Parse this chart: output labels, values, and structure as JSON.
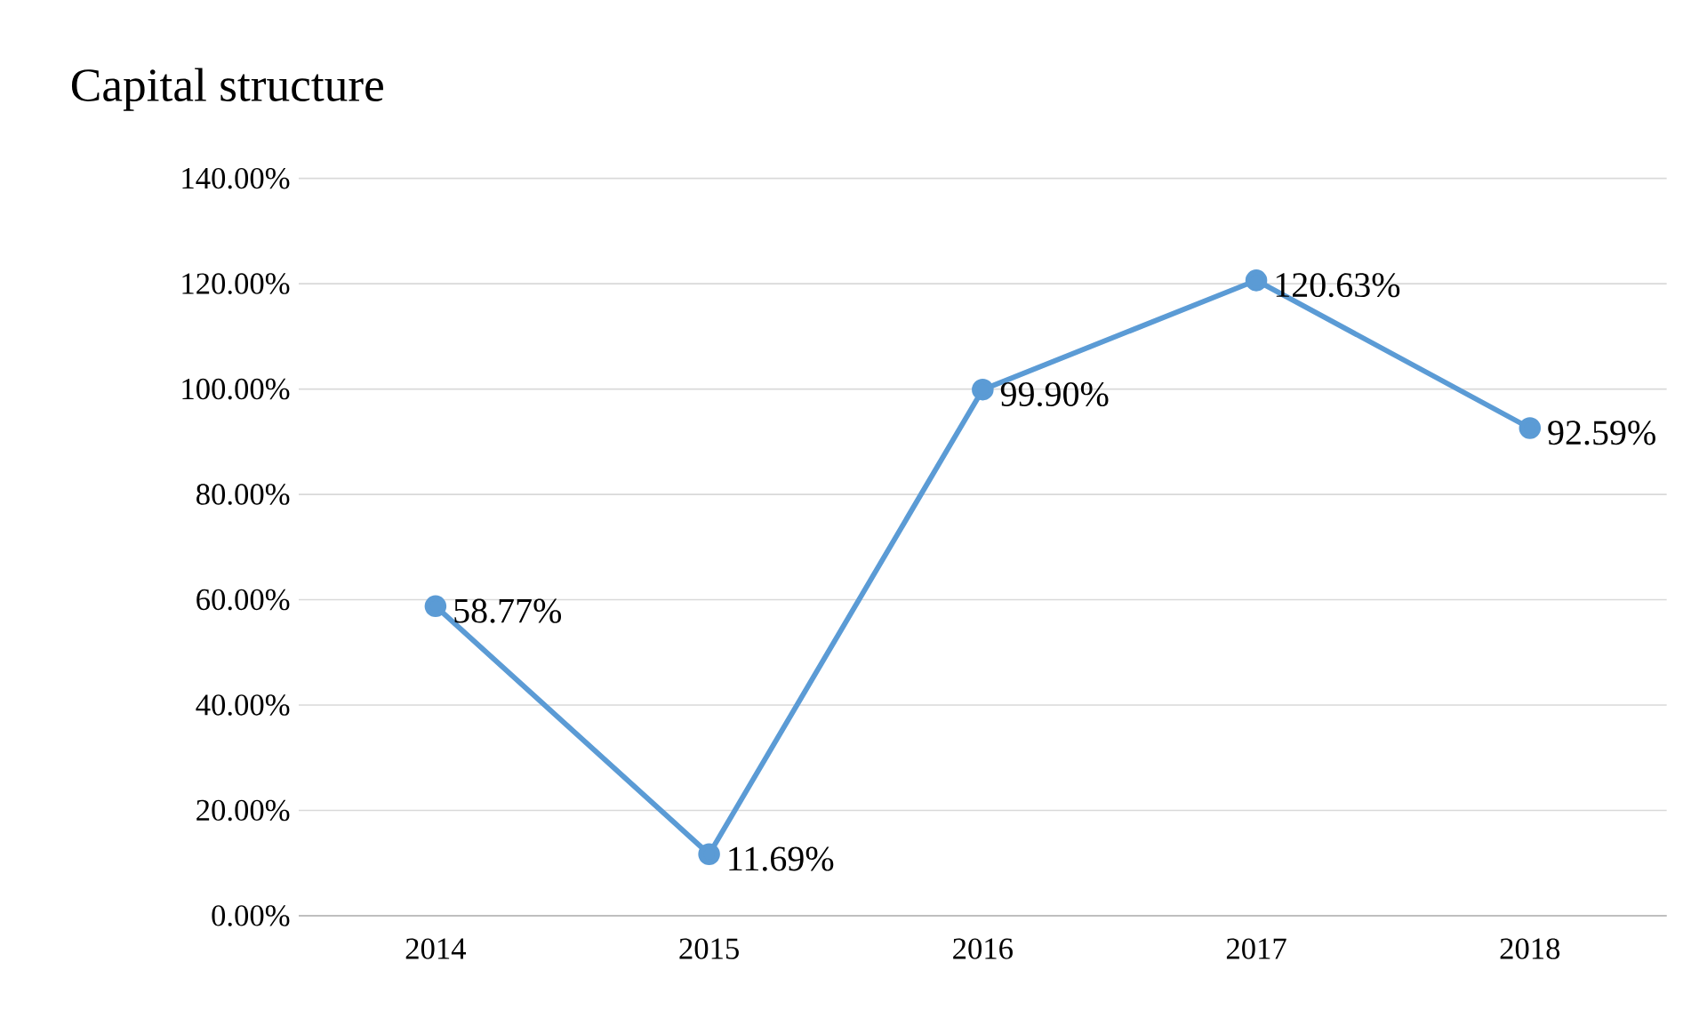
{
  "chart_data": {
    "type": "line",
    "title": "Capital structure",
    "categories": [
      "2014",
      "2015",
      "2016",
      "2017",
      "2018"
    ],
    "series": [
      {
        "color": "#5b9bd5",
        "values": [
          58.77,
          11.69,
          99.9,
          120.63,
          92.59
        ],
        "value_labels": [
          "58.77%",
          "11.69%",
          "99.90%",
          "120.63%",
          "92.59%"
        ]
      }
    ],
    "ylim": [
      0,
      140
    ],
    "yticks": [
      {
        "value": 0,
        "label": "0.00%"
      },
      {
        "value": 20,
        "label": "20.00%"
      },
      {
        "value": 40,
        "label": "40.00%"
      },
      {
        "value": 60,
        "label": "60.00%"
      },
      {
        "value": 80,
        "label": "80.00%"
      },
      {
        "value": 100,
        "label": "100.00%"
      },
      {
        "value": 120,
        "label": "120.00%"
      },
      {
        "value": 140,
        "label": "140.00%"
      }
    ],
    "grid": "y",
    "marker": "circle",
    "line_style": "solid"
  }
}
